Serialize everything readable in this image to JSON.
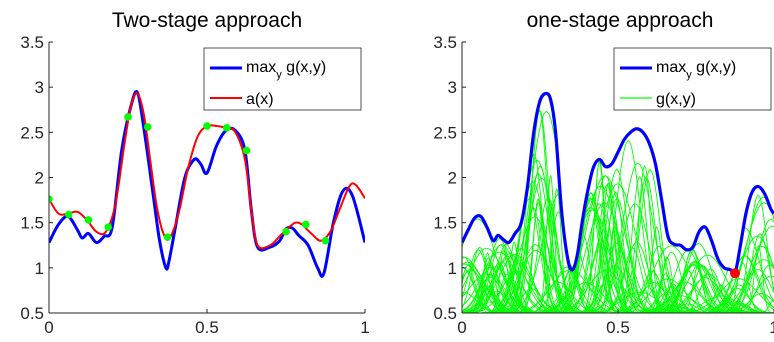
{
  "colors": {
    "max_line": "#0000ff",
    "approx_line": "#ff0000",
    "samples": "#00ff00",
    "g_curves": "#00ff00",
    "optimum": "#ff0000",
    "axes": "#262626"
  },
  "chart_data": [
    {
      "type": "line",
      "title": "Two-stage approach",
      "xlabel": "",
      "ylabel": "",
      "xlim": [
        0,
        1
      ],
      "ylim": [
        0.5,
        3.5
      ],
      "xticks": [
        "0",
        "0.5",
        "1"
      ],
      "yticks": [
        "0.5",
        "1",
        "1.5",
        "2",
        "2.5",
        "3",
        "3.5"
      ],
      "grid": false,
      "legend_position": "top-right",
      "legend": [
        {
          "label": "max",
          "sub": "y",
          "rest": " g(x,y)"
        },
        {
          "label": "a(x)",
          "sub": "",
          "rest": ""
        }
      ],
      "series": [
        {
          "name": "max_y g(x,y)",
          "color": "#0000ff",
          "x": [
            0,
            0.03,
            0.06,
            0.09,
            0.105,
            0.125,
            0.15,
            0.175,
            0.2,
            0.23,
            0.26,
            0.28,
            0.3,
            0.33,
            0.35,
            0.37,
            0.38,
            0.4,
            0.43,
            0.46,
            0.48,
            0.5,
            0.53,
            0.56,
            0.59,
            0.62,
            0.64,
            0.66,
            0.7,
            0.73,
            0.75,
            0.77,
            0.79,
            0.82,
            0.85,
            0.87,
            0.9,
            0.93,
            0.96,
            1.0
          ],
          "y": [
            1.28,
            1.48,
            1.57,
            1.42,
            1.33,
            1.38,
            1.28,
            1.35,
            1.45,
            2.3,
            2.8,
            2.94,
            2.55,
            1.8,
            1.3,
            1.0,
            1.08,
            1.45,
            2.0,
            2.2,
            2.15,
            2.05,
            2.35,
            2.52,
            2.52,
            2.3,
            1.65,
            1.23,
            1.23,
            1.3,
            1.43,
            1.44,
            1.36,
            1.25,
            1.0,
            0.94,
            1.5,
            1.85,
            1.8,
            1.28
          ]
        },
        {
          "name": "a(x)",
          "color": "#ff0000",
          "x": [
            0,
            0.03,
            0.06,
            0.09,
            0.12,
            0.15,
            0.18,
            0.21,
            0.24,
            0.26,
            0.28,
            0.3,
            0.32,
            0.34,
            0.36,
            0.38,
            0.41,
            0.44,
            0.47,
            0.5,
            0.53,
            0.56,
            0.59,
            0.62,
            0.64,
            0.66,
            0.7,
            0.73,
            0.76,
            0.78,
            0.8,
            0.83,
            0.86,
            0.89,
            0.92,
            0.95,
            0.97,
            1.0
          ],
          "y": [
            1.76,
            1.6,
            1.6,
            1.62,
            1.53,
            1.4,
            1.4,
            1.7,
            2.4,
            2.8,
            2.93,
            2.7,
            2.2,
            1.7,
            1.4,
            1.32,
            1.6,
            2.1,
            2.45,
            2.57,
            2.57,
            2.55,
            2.5,
            2.2,
            1.65,
            1.25,
            1.25,
            1.35,
            1.45,
            1.5,
            1.48,
            1.38,
            1.3,
            1.4,
            1.65,
            1.9,
            1.92,
            1.77
          ]
        }
      ],
      "sample_points": {
        "x": [
          0,
          0.0625,
          0.125,
          0.1875,
          0.25,
          0.3125,
          0.375,
          0.5,
          0.5625,
          0.625,
          0.75,
          0.8125,
          0.875
        ],
        "y": [
          1.76,
          1.59,
          1.53,
          1.45,
          2.67,
          2.56,
          1.34,
          2.57,
          2.55,
          2.3,
          1.4,
          1.48,
          1.3
        ]
      }
    },
    {
      "type": "line",
      "title": "one-stage approach",
      "xlabel": "",
      "ylabel": "",
      "xlim": [
        0,
        1
      ],
      "ylim": [
        0.5,
        3.5
      ],
      "xticks": [
        "0",
        "0.5",
        "1"
      ],
      "yticks": [
        "0.5",
        "1",
        "1.5",
        "2",
        "2.5",
        "3",
        "3.5"
      ],
      "grid": false,
      "legend_position": "top-right",
      "legend": [
        {
          "label": "max",
          "sub": "y",
          "rest": " g(x,y)"
        },
        {
          "label": "g(x,y)",
          "sub": "",
          "rest": ""
        }
      ],
      "series": [
        {
          "name": "max_y g(x,y)",
          "color": "#0000ff",
          "x": [
            0,
            0.02,
            0.04,
            0.06,
            0.08,
            0.1,
            0.115,
            0.13,
            0.15,
            0.17,
            0.19,
            0.21,
            0.23,
            0.25,
            0.27,
            0.285,
            0.3,
            0.32,
            0.34,
            0.355,
            0.37,
            0.385,
            0.4,
            0.42,
            0.44,
            0.46,
            0.48,
            0.5,
            0.52,
            0.54,
            0.56,
            0.58,
            0.6,
            0.62,
            0.64,
            0.66,
            0.68,
            0.7,
            0.72,
            0.74,
            0.76,
            0.78,
            0.8,
            0.82,
            0.84,
            0.86,
            0.875,
            0.89,
            0.91,
            0.93,
            0.95,
            0.97,
            0.99,
            1.0
          ],
          "y": [
            1.28,
            1.42,
            1.55,
            1.57,
            1.45,
            1.3,
            1.36,
            1.32,
            1.28,
            1.38,
            1.5,
            1.9,
            2.5,
            2.85,
            2.93,
            2.85,
            2.5,
            1.6,
            1.08,
            0.98,
            1.15,
            1.5,
            1.8,
            2.1,
            2.2,
            2.12,
            2.15,
            2.28,
            2.42,
            2.5,
            2.54,
            2.5,
            2.38,
            2.15,
            1.75,
            1.35,
            1.26,
            1.25,
            1.2,
            1.23,
            1.4,
            1.45,
            1.3,
            1.1,
            1.0,
            0.98,
            0.94,
            1.2,
            1.6,
            1.84,
            1.9,
            1.82,
            1.65,
            1.6
          ]
        }
      ],
      "g_curves_label": "g(x,y)",
      "optimum_point": {
        "x": 0.875,
        "y": 0.94
      }
    }
  ]
}
